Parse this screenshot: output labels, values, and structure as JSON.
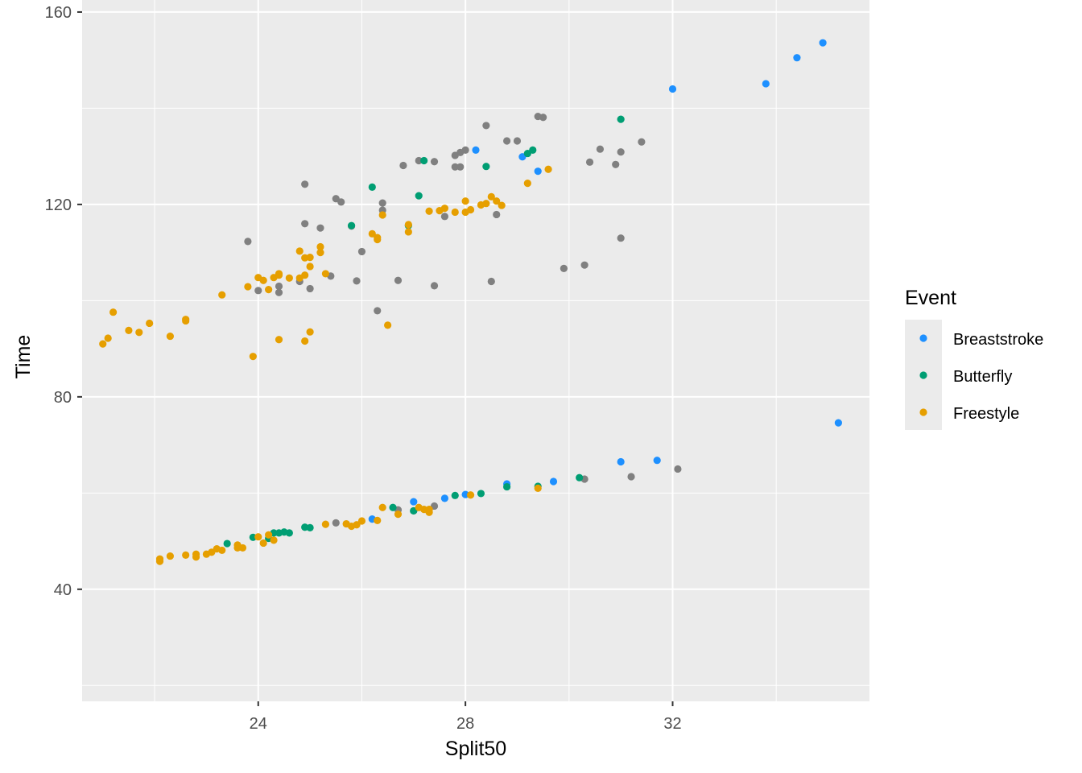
{
  "chart_data": {
    "type": "scatter",
    "xlabel": "Split50",
    "ylabel": "Time",
    "xlim": [
      20.6,
      35.8
    ],
    "ylim": [
      16.7,
      162.5
    ],
    "xticks": [
      24,
      28,
      32
    ],
    "yticks": [
      40,
      80,
      120,
      160
    ],
    "grid": true,
    "legend": {
      "title": "Event",
      "position": "right",
      "entries": [
        "Breaststroke",
        "Butterfly",
        "Freestyle"
      ]
    },
    "colors": {
      "Breaststroke": "#1e90ff",
      "Butterfly": "#009e73",
      "Freestyle": "#e69f00",
      "NA": "#808080",
      "panel_bg": "#ebebeb",
      "grid": "#ffffff"
    },
    "series": [
      {
        "name": "NA",
        "points": [
          [
            23.8,
            112.3
          ],
          [
            24.0,
            102.1
          ],
          [
            24.4,
            103.0
          ],
          [
            24.4,
            101.7
          ],
          [
            24.8,
            104.0
          ],
          [
            24.9,
            116.0
          ],
          [
            24.9,
            124.2
          ],
          [
            25.0,
            102.5
          ],
          [
            25.2,
            115.1
          ],
          [
            25.4,
            105.1
          ],
          [
            25.5,
            121.2
          ],
          [
            25.6,
            120.5
          ],
          [
            25.8,
            115.5
          ],
          [
            25.9,
            104.1
          ],
          [
            26.0,
            110.2
          ],
          [
            26.3,
            97.9
          ],
          [
            26.4,
            120.3
          ],
          [
            26.4,
            118.8
          ],
          [
            26.7,
            104.2
          ],
          [
            26.8,
            128.1
          ],
          [
            27.1,
            129.1
          ],
          [
            27.4,
            128.9
          ],
          [
            27.4,
            103.1
          ],
          [
            27.6,
            117.5
          ],
          [
            27.8,
            127.8
          ],
          [
            27.8,
            130.2
          ],
          [
            27.9,
            127.8
          ],
          [
            27.9,
            130.8
          ],
          [
            28.0,
            131.3
          ],
          [
            28.4,
            136.4
          ],
          [
            28.5,
            104.0
          ],
          [
            28.6,
            117.9
          ],
          [
            28.8,
            133.2
          ],
          [
            29.0,
            133.2
          ],
          [
            29.4,
            138.3
          ],
          [
            29.5,
            138.1
          ],
          [
            29.9,
            106.7
          ],
          [
            30.3,
            107.4
          ],
          [
            30.4,
            128.8
          ],
          [
            30.6,
            131.5
          ],
          [
            30.9,
            128.3
          ],
          [
            31.0,
            113.0
          ],
          [
            31.0,
            130.9
          ],
          [
            31.4,
            133.0
          ],
          [
            25.5,
            53.8
          ],
          [
            26.7,
            56.5
          ],
          [
            27.0,
            56.3
          ],
          [
            27.4,
            57.3
          ],
          [
            30.3,
            62.9
          ],
          [
            31.2,
            63.4
          ],
          [
            32.1,
            65.0
          ]
        ]
      },
      {
        "name": "Breaststroke",
        "points": [
          [
            32.0,
            144.0
          ],
          [
            33.8,
            145.1
          ],
          [
            34.4,
            150.5
          ],
          [
            34.9,
            153.6
          ],
          [
            28.2,
            131.3
          ],
          [
            29.1,
            129.9
          ],
          [
            29.4,
            126.9
          ],
          [
            35.2,
            74.6
          ],
          [
            31.0,
            66.5
          ],
          [
            31.7,
            66.8
          ],
          [
            29.7,
            62.4
          ],
          [
            28.8,
            61.9
          ],
          [
            28.0,
            59.7
          ],
          [
            27.6,
            58.9
          ],
          [
            27.0,
            58.2
          ],
          [
            26.2,
            54.6
          ]
        ]
      },
      {
        "name": "Butterfly",
        "points": [
          [
            31.0,
            137.7
          ],
          [
            29.3,
            131.3
          ],
          [
            29.2,
            130.6
          ],
          [
            28.4,
            127.9
          ],
          [
            27.2,
            129.1
          ],
          [
            27.1,
            121.8
          ],
          [
            26.9,
            115.6
          ],
          [
            26.2,
            123.6
          ],
          [
            25.8,
            115.6
          ],
          [
            23.4,
            49.5
          ],
          [
            23.9,
            50.8
          ],
          [
            24.2,
            50.6
          ],
          [
            24.3,
            51.7
          ],
          [
            24.4,
            51.7
          ],
          [
            24.5,
            51.9
          ],
          [
            24.6,
            51.7
          ],
          [
            24.9,
            52.9
          ],
          [
            25.0,
            52.8
          ],
          [
            26.6,
            57.0
          ],
          [
            27.0,
            56.3
          ],
          [
            27.8,
            59.5
          ],
          [
            28.3,
            59.9
          ],
          [
            28.8,
            61.3
          ],
          [
            29.4,
            61.4
          ],
          [
            30.2,
            63.2
          ]
        ]
      },
      {
        "name": "Freestyle",
        "points": [
          [
            21.0,
            91.0
          ],
          [
            21.1,
            92.2
          ],
          [
            21.2,
            97.6
          ],
          [
            21.5,
            93.8
          ],
          [
            21.7,
            93.4
          ],
          [
            21.9,
            95.3
          ],
          [
            22.3,
            92.6
          ],
          [
            22.6,
            95.8
          ],
          [
            22.6,
            96.1
          ],
          [
            23.3,
            101.2
          ],
          [
            23.8,
            102.9
          ],
          [
            23.9,
            88.4
          ],
          [
            24.0,
            104.8
          ],
          [
            24.1,
            104.2
          ],
          [
            24.2,
            102.3
          ],
          [
            24.3,
            104.8
          ],
          [
            24.4,
            105.3
          ],
          [
            24.4,
            105.6
          ],
          [
            24.4,
            91.9
          ],
          [
            24.6,
            104.7
          ],
          [
            24.8,
            104.7
          ],
          [
            24.8,
            110.3
          ],
          [
            24.9,
            105.3
          ],
          [
            24.9,
            108.9
          ],
          [
            24.9,
            91.6
          ],
          [
            25.0,
            107.1
          ],
          [
            25.0,
            109.0
          ],
          [
            25.0,
            93.5
          ],
          [
            25.2,
            110.0
          ],
          [
            25.2,
            111.2
          ],
          [
            25.3,
            105.6
          ],
          [
            26.2,
            113.9
          ],
          [
            26.3,
            113.1
          ],
          [
            26.3,
            112.7
          ],
          [
            26.4,
            117.8
          ],
          [
            26.5,
            94.9
          ],
          [
            26.9,
            114.3
          ],
          [
            26.9,
            115.8
          ],
          [
            27.3,
            118.6
          ],
          [
            27.5,
            118.7
          ],
          [
            27.6,
            119.2
          ],
          [
            27.8,
            118.4
          ],
          [
            28.0,
            118.4
          ],
          [
            28.0,
            120.7
          ],
          [
            28.1,
            118.9
          ],
          [
            28.3,
            119.9
          ],
          [
            28.4,
            120.2
          ],
          [
            28.5,
            121.6
          ],
          [
            28.6,
            120.7
          ],
          [
            28.7,
            119.8
          ],
          [
            29.2,
            124.4
          ],
          [
            29.6,
            127.3
          ],
          [
            22.1,
            45.8
          ],
          [
            22.1,
            46.3
          ],
          [
            22.3,
            46.9
          ],
          [
            22.6,
            47.1
          ],
          [
            22.8,
            46.7
          ],
          [
            22.8,
            47.3
          ],
          [
            23.0,
            47.3
          ],
          [
            23.1,
            47.7
          ],
          [
            23.2,
            48.4
          ],
          [
            23.3,
            48.1
          ],
          [
            23.6,
            48.6
          ],
          [
            23.6,
            49.2
          ],
          [
            23.7,
            48.6
          ],
          [
            24.0,
            50.9
          ],
          [
            24.1,
            49.6
          ],
          [
            24.2,
            51.3
          ],
          [
            24.3,
            50.2
          ],
          [
            25.3,
            53.5
          ],
          [
            25.7,
            53.6
          ],
          [
            25.8,
            53.1
          ],
          [
            25.9,
            53.4
          ],
          [
            26.0,
            54.2
          ],
          [
            26.3,
            54.3
          ],
          [
            26.4,
            57.0
          ],
          [
            26.7,
            55.6
          ],
          [
            27.1,
            57.0
          ],
          [
            27.2,
            56.6
          ],
          [
            27.3,
            56.6
          ],
          [
            27.3,
            56.0
          ],
          [
            28.1,
            59.6
          ],
          [
            29.4,
            61.0
          ]
        ]
      }
    ]
  }
}
